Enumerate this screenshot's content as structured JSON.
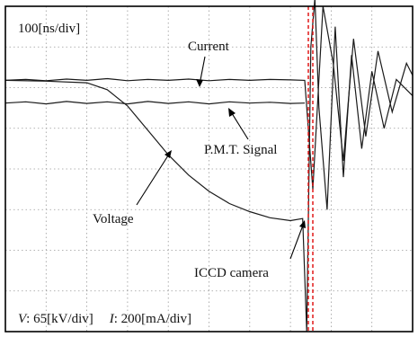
{
  "chart_data": {
    "type": "line",
    "title": "",
    "timebase": "100[ns/div]",
    "scale_footer": {
      "v_symbol": "V",
      "v_value": ": 65[kV/div]",
      "i_symbol": "I",
      "i_value": ": 200[mA/div]"
    },
    "grid": true,
    "grid_divisions": {
      "x": 10,
      "y": 8
    },
    "xlim_div": [
      0,
      10
    ],
    "ylim_div": [
      0,
      8
    ],
    "series": [
      {
        "name": "Current",
        "x": [
          0,
          0.5,
          1,
          1.5,
          2,
          2.5,
          3,
          3.5,
          4,
          4.5,
          5,
          5.5,
          6,
          6.5,
          7,
          7.35,
          7.55,
          7.8,
          8.05,
          8.3,
          8.55,
          8.85,
          9.15,
          9.5,
          9.85,
          10
        ],
        "y": [
          6.18,
          6.2,
          6.17,
          6.21,
          6.18,
          6.22,
          6.17,
          6.2,
          6.18,
          6.21,
          6.17,
          6.2,
          6.18,
          6.2,
          6.19,
          6.18,
          3.5,
          8.0,
          6.6,
          4.2,
          7.2,
          4.8,
          6.9,
          5.4,
          6.6,
          6.3
        ]
      },
      {
        "name": "P.M.T. Signal",
        "x": [
          0,
          0.5,
          1,
          1.5,
          2,
          2.5,
          3,
          3.5,
          4,
          4.5,
          5,
          5.5,
          6,
          6.5,
          7,
          7.35
        ],
        "y": [
          5.62,
          5.65,
          5.6,
          5.66,
          5.61,
          5.65,
          5.6,
          5.66,
          5.61,
          5.65,
          5.6,
          5.65,
          5.62,
          5.64,
          5.61,
          5.62
        ]
      },
      {
        "name": "Voltage",
        "x": [
          0,
          1,
          2,
          2.5,
          3,
          3.5,
          4,
          4.5,
          5,
          5.5,
          6,
          6.5,
          7,
          7.3,
          7.4,
          7.5,
          7.6,
          7.7,
          7.9,
          8.1,
          8.3,
          8.5,
          8.75,
          9,
          9.3,
          9.6,
          10
        ],
        "y": [
          6.18,
          6.16,
          6.12,
          5.95,
          5.55,
          4.95,
          4.35,
          3.85,
          3.45,
          3.15,
          2.95,
          2.8,
          2.73,
          2.78,
          0.0,
          7.0,
          8.2,
          5.5,
          3.0,
          7.5,
          3.8,
          6.8,
          4.5,
          6.4,
          5.0,
          6.2,
          5.8
        ]
      }
    ],
    "annotations": [
      {
        "label": "Current"
      },
      {
        "label": "P.M.T. Signal"
      },
      {
        "label": "Voltage"
      },
      {
        "label": "ICCD camera"
      }
    ]
  }
}
